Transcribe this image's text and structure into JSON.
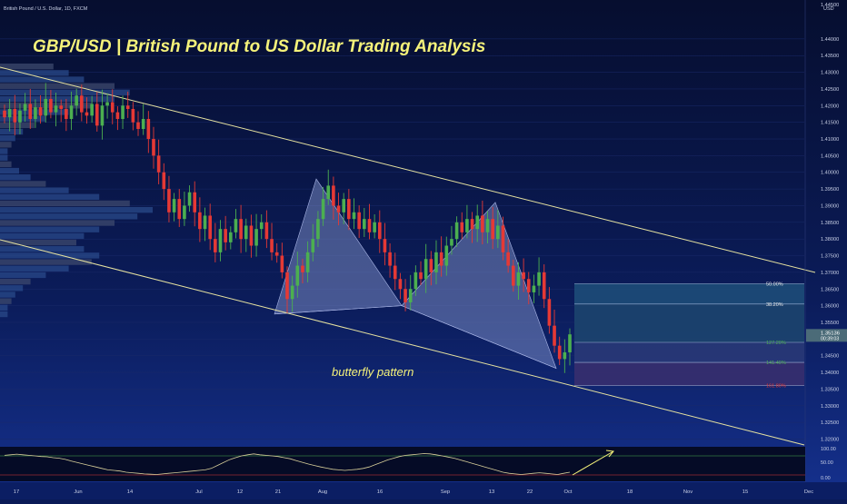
{
  "header": {
    "symbol": "British Pound / U.S. Dollar, 1D, FXCM",
    "currency": "USD"
  },
  "title": "GBP/USD | British Pound to US Dollar Trading Analysis",
  "annotation": "butterfly pattern",
  "chart_data": {
    "type": "candlestick",
    "title": "GBP/USD | British Pound to US Dollar Trading Analysis",
    "instrument": "British Pound / U.S. Dollar",
    "timeframe": "1D",
    "source": "FXCM",
    "y_ticks": [
      "1.44000",
      "1.43500",
      "1.43000",
      "1.42500",
      "1.42000",
      "1.41500",
      "1.41000",
      "1.40500",
      "1.40000",
      "1.39500",
      "1.39000",
      "1.38500",
      "1.38000",
      "1.37500",
      "1.37000",
      "1.36500",
      "1.36000",
      "1.35500",
      "1.35000",
      "1.34500",
      "1.34000",
      "1.33500",
      "1.33000",
      "1.32500",
      "1.32000"
    ],
    "y_axis_top_label": "1.44500",
    "ylim": [
      1.3185,
      1.4465
    ],
    "x_ticks": [
      "17",
      "Jun",
      "14",
      "Jul",
      "12",
      "21",
      "Aug",
      "16",
      "Sep",
      "13",
      "22",
      "Oct",
      "18",
      "Nov",
      "15",
      "Dec"
    ],
    "last_price": "1.35136",
    "countdown": "00:39:03",
    "closes": [
      1.4165,
      1.419,
      1.415,
      1.4185,
      1.4205,
      1.416,
      1.4195,
      1.417,
      1.422,
      1.418,
      1.42,
      1.419,
      1.416,
      1.42,
      1.423,
      1.418,
      1.417,
      1.4205,
      1.414,
      1.42,
      1.421,
      1.418,
      1.416,
      1.42,
      1.419,
      1.415,
      1.413,
      1.416,
      1.41,
      1.405,
      1.4,
      1.395,
      1.388,
      1.392,
      1.386,
      1.39,
      1.394,
      1.388,
      1.383,
      1.387,
      1.38,
      1.376,
      1.383,
      1.379,
      1.382,
      1.386,
      1.38,
      1.384,
      1.378,
      1.383,
      1.385,
      1.38,
      1.376,
      1.375,
      1.37,
      1.362,
      1.366,
      1.372,
      1.37,
      1.376,
      1.38,
      1.386,
      1.392,
      1.396,
      1.39,
      1.388,
      1.392,
      1.386,
      1.388,
      1.383,
      1.386,
      1.382,
      1.385,
      1.38,
      1.376,
      1.372,
      1.368,
      1.365,
      1.361,
      1.365,
      1.37,
      1.368,
      1.374,
      1.37,
      1.376,
      1.372,
      1.378,
      1.38,
      1.385,
      1.382,
      1.386,
      1.383,
      1.387,
      1.382,
      1.386,
      1.38,
      1.384,
      1.376,
      1.372,
      1.366,
      1.37,
      1.368,
      1.364,
      1.366,
      1.37,
      1.362,
      1.354,
      1.348,
      1.344,
      1.346,
      1.3514
    ],
    "price_levels": [
      {
        "ratio": "50.00%",
        "price": 1.3666
      },
      {
        "ratio": "38.20%",
        "price": 1.3605
      },
      {
        "ratio": "127.20%",
        "price": 1.349
      },
      {
        "ratio": "141.40%",
        "price": 1.343
      },
      {
        "ratio": "161.80%",
        "price": 1.336
      }
    ],
    "butterfly": {
      "X": 1.3575,
      "A": 1.398,
      "B": 1.36,
      "C": 1.391,
      "D": 1.3412
    },
    "volume_profile": [
      14,
      18,
      22,
      30,
      34,
      30,
      24,
      18,
      12,
      9,
      6,
      4,
      3,
      2,
      2,
      3,
      5,
      8,
      12,
      18,
      26,
      34,
      40,
      36,
      30,
      26,
      22,
      20,
      22,
      26,
      24,
      18,
      12,
      8,
      6,
      4,
      3,
      2,
      2
    ],
    "indicator": {
      "levels": [
        "100.00",
        "50.00",
        "0.00"
      ],
      "values": [
        80,
        82,
        84,
        82,
        80,
        78,
        76,
        75,
        72,
        70,
        66,
        60,
        55,
        50,
        45,
        40,
        35,
        30,
        28,
        26,
        22,
        20,
        18,
        16,
        15,
        14,
        16,
        18,
        20,
        22,
        24,
        26,
        28,
        30,
        35,
        45,
        55,
        65,
        72,
        78,
        82,
        85,
        82,
        80,
        78,
        76,
        72,
        68,
        62,
        56,
        50,
        45,
        40,
        36,
        32,
        30,
        28,
        30,
        32,
        35,
        40,
        48,
        56,
        64,
        70,
        76,
        80,
        82,
        84,
        86,
        85,
        82,
        78,
        74,
        70,
        64,
        58,
        52,
        46,
        40,
        34,
        28,
        22,
        18,
        16,
        14,
        16,
        18,
        20,
        18,
        16,
        14,
        18,
        22
      ]
    }
  }
}
